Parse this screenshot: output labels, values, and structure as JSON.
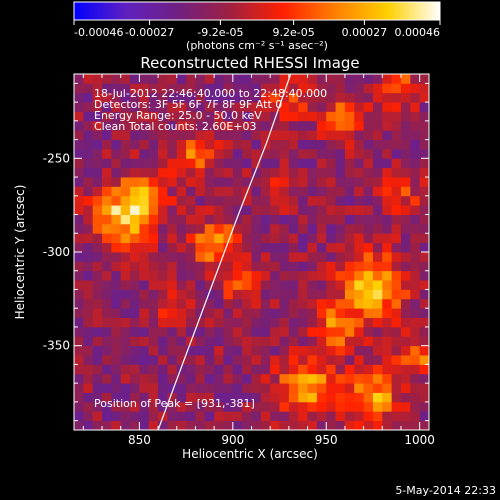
{
  "chart_data": {
    "type": "heatmap",
    "title": "Reconstructed RHESSI Image",
    "xlabel": "Heliocentric X (arcsec)",
    "ylabel": "Heliocentric Y (arcsec)",
    "xlim": [
      815,
      1005
    ],
    "ylim": [
      -395,
      -205
    ],
    "x_ticks": [
      850,
      900,
      950,
      1000
    ],
    "x_tick_labels": [
      "850",
      "900",
      "950",
      "1000"
    ],
    "y_ticks": [
      -250,
      -300,
      -350
    ],
    "y_tick_labels": [
      "-250",
      "-300",
      "-350"
    ],
    "grid": false,
    "colorbar": {
      "range": [
        -0.00046,
        0.00046
      ],
      "ticks": [
        -0.00046,
        -0.00027,
        -9.2e-05,
        9.2e-05,
        0.00027,
        0.00046
      ],
      "tick_labels": [
        "-0.00046",
        "-0.00027",
        "-9.2e-05",
        "9.2e-05",
        "0.00027",
        "0.00046"
      ],
      "unit_label": "(photons cm⁻² s⁻¹ asec⁻²)",
      "colors": [
        "#0000ff",
        "#6020c0",
        "#702080",
        "#a02040",
        "#ff2000",
        "#ff8000",
        "#ffd000",
        "#ffffff"
      ]
    },
    "annotations": [
      "18-Jul-2012 22:46:40.000 to 22:48:40.000",
      "Detectors: 3F 5F 6F 7F 8F 9F Att 0",
      "Energy Range: 25.0 - 50.0 keV",
      "Clean    Total counts: 2.60E+03"
    ],
    "peak_label": "Position of Peak = [931,-381]",
    "limb_points": [
      [
        860,
        -395
      ],
      [
        873,
        -360
      ],
      [
        888,
        -320
      ],
      [
        903,
        -280
      ],
      [
        918,
        -242
      ],
      [
        931,
        -205
      ]
    ],
    "hotspots": [
      {
        "x": 840,
        "y": -282,
        "r": 13,
        "v": 0.00042
      },
      {
        "x": 852,
        "y": -270,
        "r": 10,
        "v": 0.00036
      },
      {
        "x": 890,
        "y": -296,
        "r": 11,
        "v": 0.00035
      },
      {
        "x": 880,
        "y": -248,
        "r": 10,
        "v": 0.00028
      },
      {
        "x": 905,
        "y": -318,
        "r": 8,
        "v": 0.00024
      },
      {
        "x": 975,
        "y": -318,
        "r": 14,
        "v": 0.00044
      },
      {
        "x": 955,
        "y": -340,
        "r": 10,
        "v": 0.0003
      },
      {
        "x": 940,
        "y": -372,
        "r": 13,
        "v": 0.0004
      },
      {
        "x": 975,
        "y": -377,
        "r": 12,
        "v": 0.00038
      },
      {
        "x": 998,
        "y": -355,
        "r": 9,
        "v": 0.0003
      },
      {
        "x": 960,
        "y": -228,
        "r": 10,
        "v": 0.00026
      },
      {
        "x": 930,
        "y": -220,
        "r": 9,
        "v": 0.00022
      },
      {
        "x": 990,
        "y": -212,
        "r": 9,
        "v": 0.00024
      },
      {
        "x": 925,
        "y": -265,
        "r": 8,
        "v": 0.00018
      },
      {
        "x": 990,
        "y": -270,
        "r": 9,
        "v": 0.0002
      },
      {
        "x": 865,
        "y": -330,
        "r": 8,
        "v": 0.00016
      }
    ]
  },
  "footer": {
    "date": "5-May-2014 22:33"
  }
}
